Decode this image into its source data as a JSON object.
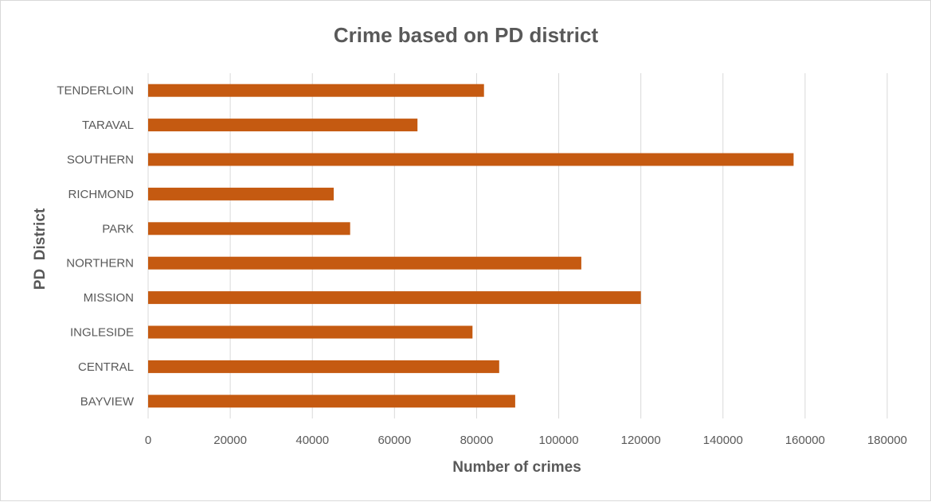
{
  "chart_data": {
    "type": "bar",
    "orientation": "horizontal",
    "title": "Crime based on PD district",
    "xlabel": "Number of crimes",
    "ylabel": "PD  District",
    "categories": [
      "BAYVIEW",
      "CENTRAL",
      "INGLESIDE",
      "MISSION",
      "NORTHERN",
      "PARK",
      "RICHMOND",
      "SOUTHERN",
      "TARAVAL",
      "TENDERLOIN"
    ],
    "values": [
      89400,
      85500,
      79000,
      120000,
      105500,
      49200,
      45200,
      157200,
      65600,
      81800
    ],
    "xlim": [
      0,
      180000
    ],
    "xticks": [
      "0",
      "20000",
      "40000",
      "60000",
      "80000",
      "100000",
      "120000",
      "140000",
      "160000",
      "180000"
    ],
    "grid": true,
    "legend": "none",
    "bar_color": "#C55A11"
  }
}
